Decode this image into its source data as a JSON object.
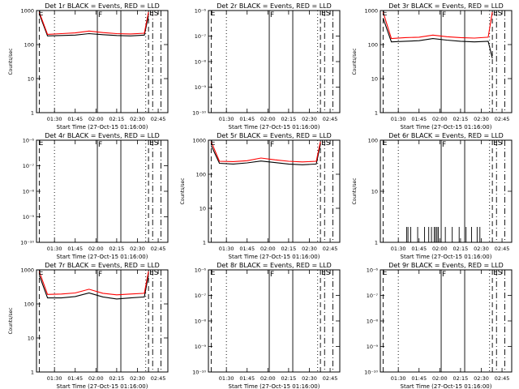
{
  "page": {
    "background": "#ffffff"
  },
  "colors": {
    "events": "#000000",
    "lld": "#ff0000",
    "axes": "#000000"
  },
  "chart_data": [
    {
      "type": "line",
      "title": "Det 1r BLACK = Events, RED = LLD",
      "xlabel": "Start Time (27-Oct-15 01:16:00)",
      "ylabel": "Counts/sec",
      "yscale": "log",
      "ylim": [
        1,
        1000
      ],
      "yticks": [
        "1",
        "10",
        "100",
        "1000"
      ],
      "xlim": [
        "01:17",
        "02:52"
      ],
      "xticks": [
        "01:30",
        "01:45",
        "02:00",
        "02:15",
        "02:30",
        "02:45"
      ],
      "markers": [
        {
          "label": "E",
          "time": "01:18"
        },
        {
          "label": "F",
          "time": "02:01"
        },
        {
          "label": "ES",
          "time": "02:38"
        }
      ],
      "vlines": {
        "dashed": [
          "01:19",
          "02:38"
        ],
        "dotted": [
          "01:30",
          "02:36"
        ],
        "solid": [
          "02:01",
          "02:18"
        ],
        "dashdot": [
          "02:41",
          "02:47"
        ]
      },
      "series": [
        {
          "name": "Events",
          "color": "#000000",
          "x": [
            "01:19",
            "01:25",
            "01:35",
            "01:45",
            "01:55",
            "02:05",
            "02:15",
            "02:25",
            "02:35",
            "02:38"
          ],
          "values": [
            800,
            180,
            185,
            190,
            210,
            195,
            185,
            180,
            190,
            700
          ]
        },
        {
          "name": "LLD",
          "color": "#ff0000",
          "x": [
            "01:19",
            "01:25",
            "01:35",
            "01:45",
            "01:55",
            "02:05",
            "02:15",
            "02:25",
            "02:35",
            "02:38"
          ],
          "values": [
            900,
            200,
            210,
            220,
            250,
            225,
            210,
            205,
            215,
            900
          ]
        }
      ]
    },
    {
      "type": "line",
      "title": "Det 2r BLACK = Events, RED = LLD",
      "xlabel": "Start Time (27-Oct-15 01:16:00)",
      "ylabel": "",
      "yscale": "log",
      "ylim": [
        1e-10,
        1e-06
      ],
      "yticks": [
        "10⁻¹⁰",
        "10⁻⁹",
        "10⁻⁸",
        "10⁻⁷",
        "10⁻⁶"
      ],
      "xlim": [
        "01:17",
        "02:52"
      ],
      "xticks": [
        "01:30",
        "01:45",
        "02:00",
        "02:15",
        "02:30",
        "02:45"
      ],
      "markers": [
        {
          "label": "E",
          "time": "01:18"
        },
        {
          "label": "F",
          "time": "02:01"
        },
        {
          "label": "ES",
          "time": "02:38"
        }
      ],
      "vlines": {
        "dashed": [
          "01:19",
          "02:38"
        ],
        "dotted": [
          "01:30",
          "02:36"
        ],
        "solid": [
          "02:01",
          "02:18"
        ],
        "dashdot": [
          "02:41",
          "02:47"
        ]
      },
      "series": []
    },
    {
      "type": "line",
      "title": "Det 3r BLACK = Events, RED = LLD",
      "xlabel": "Start Time (27-Oct-15 01:16:00)",
      "ylabel": "Counts/sec",
      "yscale": "log",
      "ylim": [
        1,
        1000
      ],
      "yticks": [
        "1",
        "10",
        "100",
        "1000"
      ],
      "xlim": [
        "01:17",
        "02:52"
      ],
      "xticks": [
        "01:30",
        "01:45",
        "02:00",
        "02:15",
        "02:30",
        "02:45"
      ],
      "markers": [
        {
          "label": "E",
          "time": "01:18"
        },
        {
          "label": "F",
          "time": "02:01"
        },
        {
          "label": "ES",
          "time": "02:38"
        }
      ],
      "vlines": {
        "dashed": [
          "01:19",
          "02:38"
        ],
        "dotted": [
          "01:30",
          "02:36"
        ],
        "solid": [
          "02:01",
          "02:18"
        ],
        "dashdot": [
          "02:41",
          "02:47"
        ]
      },
      "series": [
        {
          "name": "Events",
          "color": "#000000",
          "x": [
            "01:19",
            "01:25",
            "01:35",
            "01:45",
            "01:55",
            "02:05",
            "02:15",
            "02:25",
            "02:35",
            "02:38"
          ],
          "values": [
            600,
            120,
            125,
            130,
            150,
            135,
            125,
            120,
            125,
            40
          ]
        },
        {
          "name": "LLD",
          "color": "#ff0000",
          "x": [
            "01:19",
            "01:25",
            "01:35",
            "01:45",
            "01:55",
            "02:05",
            "02:15",
            "02:25",
            "02:35",
            "02:38"
          ],
          "values": [
            900,
            150,
            160,
            165,
            190,
            170,
            160,
            155,
            165,
            900
          ]
        }
      ]
    },
    {
      "type": "line",
      "title": "Det 4r BLACK = Events, RED = LLD",
      "xlabel": "Start Time (27-Oct-15 01:16:00)",
      "ylabel": "",
      "yscale": "log",
      "ylim": [
        1e-10,
        1e-06
      ],
      "yticks": [
        "10⁻¹⁰",
        "10⁻⁹",
        "10⁻⁸",
        "10⁻⁷",
        "10⁻⁶"
      ],
      "xlim": [
        "01:17",
        "02:52"
      ],
      "xticks": [
        "01:30",
        "01:45",
        "02:00",
        "02:15",
        "02:30",
        "02:45"
      ],
      "markers": [
        {
          "label": "E",
          "time": "01:18"
        },
        {
          "label": "F",
          "time": "02:01"
        },
        {
          "label": "ES",
          "time": "02:38"
        }
      ],
      "vlines": {
        "dashed": [
          "01:19",
          "02:38"
        ],
        "dotted": [
          "01:30",
          "02:36"
        ],
        "solid": [
          "02:01",
          "02:18"
        ],
        "dashdot": [
          "02:41",
          "02:47"
        ]
      },
      "series": []
    },
    {
      "type": "line",
      "title": "Det 5r BLACK = Events, RED = LLD",
      "xlabel": "Start Time (27-Oct-15 01:16:00)",
      "ylabel": "Counts/sec",
      "yscale": "log",
      "ylim": [
        1,
        1000
      ],
      "yticks": [
        "1",
        "10",
        "100",
        "1000"
      ],
      "xlim": [
        "01:17",
        "02:52"
      ],
      "xticks": [
        "01:30",
        "01:45",
        "02:00",
        "02:15",
        "02:30",
        "02:45"
      ],
      "markers": [
        {
          "label": "E",
          "time": "01:18"
        },
        {
          "label": "F",
          "time": "02:01"
        },
        {
          "label": "ES",
          "time": "02:38"
        }
      ],
      "vlines": {
        "dashed": [
          "01:19",
          "02:38"
        ],
        "dotted": [
          "01:30",
          "02:36"
        ],
        "solid": [
          "02:01",
          "02:18"
        ],
        "dashdot": [
          "02:41",
          "02:47"
        ]
      },
      "series": [
        {
          "name": "Events",
          "color": "#000000",
          "x": [
            "01:19",
            "01:25",
            "01:35",
            "01:45",
            "01:55",
            "02:05",
            "02:15",
            "02:25",
            "02:35",
            "02:38"
          ],
          "values": [
            700,
            210,
            200,
            215,
            245,
            220,
            200,
            190,
            200,
            750
          ]
        },
        {
          "name": "LLD",
          "color": "#ff0000",
          "x": [
            "01:19",
            "01:25",
            "01:35",
            "01:45",
            "01:55",
            "02:05",
            "02:15",
            "02:25",
            "02:35",
            "02:38"
          ],
          "values": [
            900,
            240,
            235,
            250,
            300,
            265,
            240,
            230,
            240,
            900
          ]
        }
      ]
    },
    {
      "type": "line",
      "title": "Det 6r BLACK = Events, RED = LLD",
      "xlabel": "Start Time (27-Oct-15 01:16:00)",
      "ylabel": "Counts/sec",
      "yscale": "log",
      "ylim": [
        1,
        100
      ],
      "yticks": [
        "1",
        "10",
        "100"
      ],
      "xlim": [
        "01:17",
        "02:52"
      ],
      "xticks": [
        "01:30",
        "01:45",
        "02:00",
        "02:15",
        "02:30",
        "02:45"
      ],
      "markers": [
        {
          "label": "E",
          "time": "01:18"
        },
        {
          "label": "F",
          "time": "02:01"
        },
        {
          "label": "ES",
          "time": "02:38"
        }
      ],
      "vlines": {
        "dashed": [
          "01:19",
          "02:38"
        ],
        "dotted": [
          "01:30",
          "02:36"
        ],
        "solid": [
          "02:01",
          "02:18"
        ],
        "dashdot": [
          "02:41",
          "02:47"
        ]
      },
      "series": [
        {
          "name": "Events",
          "color": "#000000",
          "x": [
            "01:36",
            "01:37",
            "01:39",
            "01:44",
            "01:49",
            "01:52",
            "01:54",
            "01:56",
            "01:57",
            "01:58",
            "01:59",
            "02:04",
            "02:09",
            "02:14",
            "02:19",
            "02:23",
            "02:27",
            "02:29"
          ],
          "values": [
            2,
            2,
            2,
            2,
            2,
            2,
            2,
            2,
            2,
            2,
            2,
            2,
            2,
            2,
            2,
            2,
            2,
            2
          ],
          "style": "spikes"
        }
      ]
    },
    {
      "type": "line",
      "title": "Det 7r BLACK = Events, RED = LLD",
      "xlabel": "Start Time (27-Oct-15 01:16:00)",
      "ylabel": "Counts/sec",
      "yscale": "log",
      "ylim": [
        1,
        1000
      ],
      "yticks": [
        "1",
        "10",
        "100",
        "1000"
      ],
      "xlim": [
        "01:17",
        "02:52"
      ],
      "xticks": [
        "01:30",
        "01:45",
        "02:00",
        "02:15",
        "02:30",
        "02:45"
      ],
      "markers": [
        {
          "label": "E",
          "time": "01:18"
        },
        {
          "label": "F",
          "time": "02:01"
        },
        {
          "label": "ES",
          "time": "02:38"
        }
      ],
      "vlines": {
        "dashed": [
          "01:19",
          "02:38"
        ],
        "dotted": [
          "01:30",
          "02:36"
        ],
        "solid": [
          "02:01",
          "02:18"
        ],
        "dashdot": [
          "02:41",
          "02:47"
        ]
      },
      "series": [
        {
          "name": "Events",
          "color": "#000000",
          "x": [
            "01:19",
            "01:25",
            "01:35",
            "01:45",
            "01:55",
            "02:05",
            "02:15",
            "02:25",
            "02:35",
            "02:38"
          ],
          "values": [
            700,
            150,
            150,
            165,
            210,
            160,
            140,
            150,
            160,
            700
          ]
        },
        {
          "name": "LLD",
          "color": "#ff0000",
          "x": [
            "01:19",
            "01:25",
            "01:35",
            "01:45",
            "01:55",
            "02:05",
            "02:15",
            "02:25",
            "02:35",
            "02:38"
          ],
          "values": [
            900,
            190,
            195,
            210,
            270,
            205,
            185,
            195,
            205,
            900
          ]
        }
      ]
    },
    {
      "type": "line",
      "title": "Det 8r BLACK = Events, RED = LLD",
      "xlabel": "Start Time (27-Oct-15 01:16:00)",
      "ylabel": "",
      "yscale": "log",
      "ylim": [
        1e-10,
        1e-06
      ],
      "yticks": [
        "10⁻¹⁰",
        "10⁻⁹",
        "10⁻⁸",
        "10⁻⁷",
        "10⁻⁶"
      ],
      "xlim": [
        "01:17",
        "02:52"
      ],
      "xticks": [
        "01:30",
        "01:45",
        "02:00",
        "02:15",
        "02:30",
        "02:45"
      ],
      "markers": [
        {
          "label": "E",
          "time": "01:18"
        },
        {
          "label": "F",
          "time": "02:01"
        },
        {
          "label": "ES",
          "time": "02:38"
        }
      ],
      "vlines": {
        "dashed": [
          "01:19",
          "02:38"
        ],
        "dotted": [
          "01:30",
          "02:36"
        ],
        "solid": [
          "02:01",
          "02:18"
        ],
        "dashdot": [
          "02:41",
          "02:47"
        ]
      },
      "series": []
    },
    {
      "type": "line",
      "title": "Det 9r BLACK = Events, RED = LLD",
      "xlabel": "Start Time (27-Oct-15 01:16:00)",
      "ylabel": "",
      "yscale": "log",
      "ylim": [
        1e-10,
        1e-06
      ],
      "yticks": [
        "10⁻¹⁰",
        "10⁻⁹",
        "10⁻⁸",
        "10⁻⁷",
        "10⁻⁶"
      ],
      "xlim": [
        "01:17",
        "02:52"
      ],
      "xticks": [
        "01:30",
        "01:45",
        "02:00",
        "02:15",
        "02:30",
        "02:45"
      ],
      "markers": [
        {
          "label": "E",
          "time": "01:18"
        },
        {
          "label": "F",
          "time": "02:01"
        },
        {
          "label": "ES",
          "time": "02:38"
        }
      ],
      "vlines": {
        "dashed": [
          "01:19",
          "02:38"
        ],
        "dotted": [
          "01:30",
          "02:36"
        ],
        "solid": [
          "02:01",
          "02:18"
        ],
        "dashdot": [
          "02:41",
          "02:47"
        ]
      },
      "series": []
    }
  ]
}
